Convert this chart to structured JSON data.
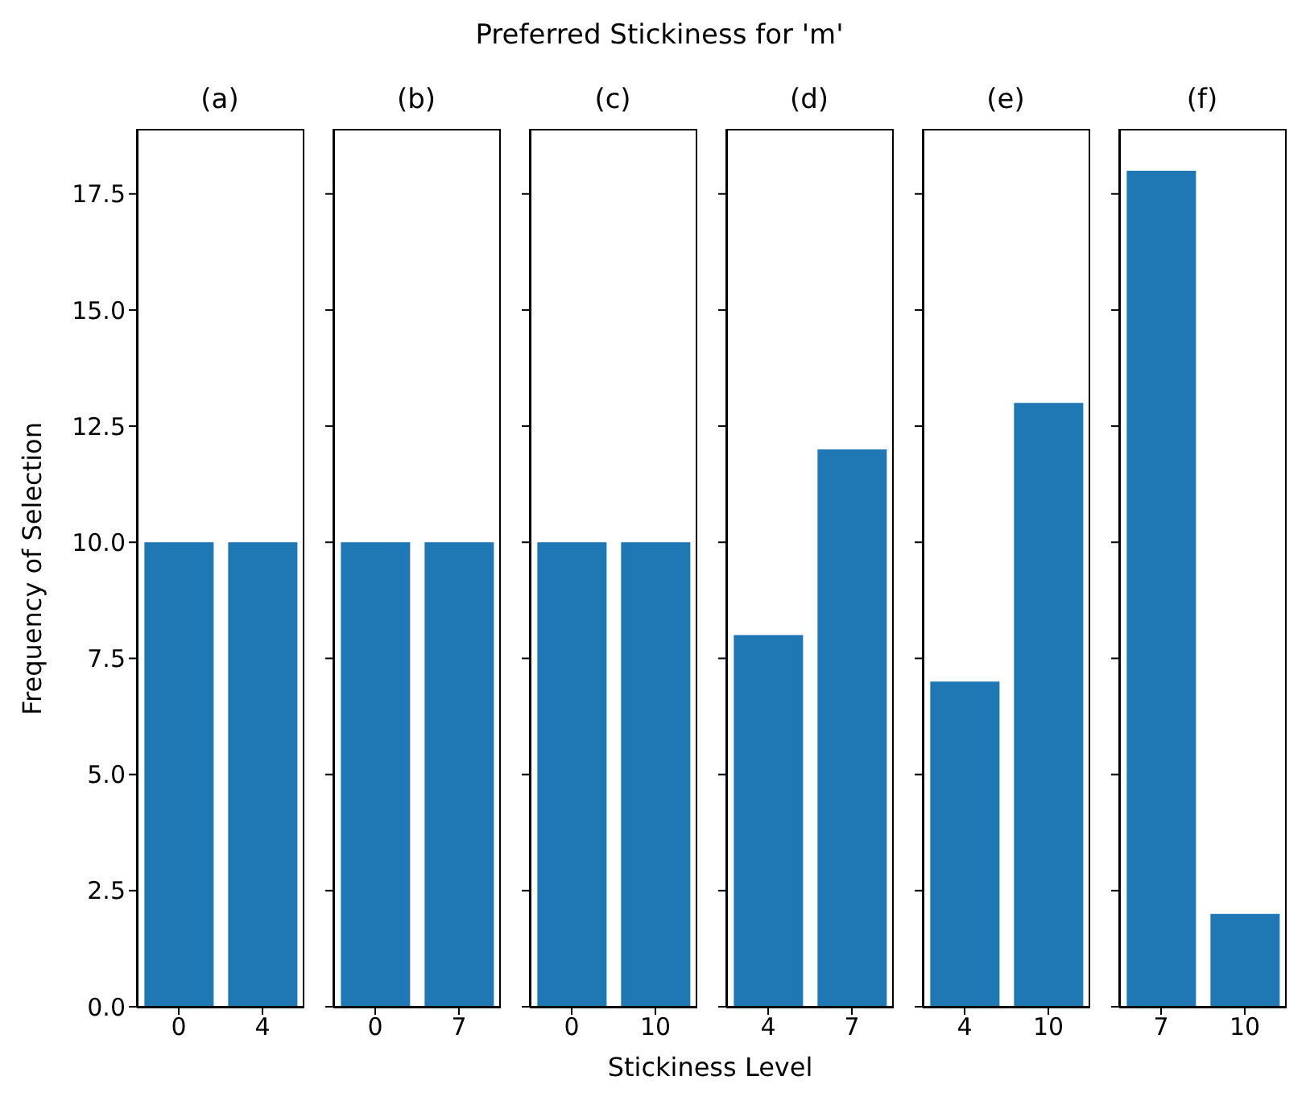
{
  "chart_data": [
    {
      "type": "bar",
      "title": "(a)",
      "annotations": [
        "Preferred Stickiness for 'm'"
      ],
      "ylabel": "Frequency of Selection",
      "categories": [
        "0",
        "4"
      ],
      "values": [
        10,
        10
      ],
      "color": "#1f77b4",
      "ylim": [
        0,
        18.9
      ],
      "yticks": [
        {
          "value": 0,
          "label": "0.0"
        },
        2.5,
        {
          "value": 5,
          "label": "5.0"
        },
        7.5,
        {
          "value": 10,
          "label": "10.0"
        },
        12.5,
        {
          "value": 15,
          "label": "15.0"
        },
        17.5
      ],
      "legend": false,
      "grid": false
    },
    {
      "type": "bar",
      "title": "(b)",
      "categories": [
        "0",
        "7"
      ],
      "values": [
        10,
        10
      ],
      "color": "#1f77b4",
      "ylim": [
        0,
        18.9
      ],
      "yticks": [
        {
          "value": 0,
          "label": null
        },
        {
          "value": 2.5,
          "label": null
        },
        {
          "value": 5,
          "label": null
        },
        {
          "value": 7.5,
          "label": null
        },
        {
          "value": 10,
          "label": null
        },
        {
          "value": 12.5,
          "label": null
        },
        {
          "value": 15,
          "label": null
        },
        {
          "value": 17.5,
          "label": null
        }
      ],
      "tick_labels": "x",
      "legend": false,
      "grid": false
    },
    {
      "type": "bar",
      "title": "(c)",
      "xlabel": "Stickiness Level",
      "categories": [
        "0",
        "10"
      ],
      "values": [
        10,
        10
      ],
      "color": "#1f77b4",
      "ylim": [
        0,
        18.9
      ],
      "yticks": [
        {
          "value": 0,
          "label": null
        },
        {
          "value": 2.5,
          "label": null
        },
        {
          "value": 5,
          "label": null
        },
        {
          "value": 7.5,
          "label": null
        },
        {
          "value": 10,
          "label": null
        },
        {
          "value": 12.5,
          "label": null
        },
        {
          "value": 15,
          "label": null
        },
        {
          "value": 17.5,
          "label": null
        }
      ],
      "tick_labels": "x",
      "legend": false,
      "grid": false
    },
    {
      "type": "bar",
      "title": "(d)",
      "categories": [
        "4",
        "7"
      ],
      "values": [
        8,
        12
      ],
      "color": "#1f77b4",
      "ylim": [
        0,
        18.9
      ],
      "yticks": [
        {
          "value": 0,
          "label": null
        },
        {
          "value": 2.5,
          "label": null
        },
        {
          "value": 5,
          "label": null
        },
        {
          "value": 7.5,
          "label": null
        },
        {
          "value": 10,
          "label": null
        },
        {
          "value": 12.5,
          "label": null
        },
        {
          "value": 15,
          "label": null
        },
        {
          "value": 17.5,
          "label": null
        }
      ],
      "tick_labels": "x",
      "legend": false,
      "grid": false
    },
    {
      "type": "bar",
      "title": "(e)",
      "categories": [
        "4",
        "10"
      ],
      "values": [
        7,
        13
      ],
      "color": "#1f77b4",
      "ylim": [
        0,
        18.9
      ],
      "yticks": [
        {
          "value": 0,
          "label": null
        },
        {
          "value": 2.5,
          "label": null
        },
        {
          "value": 5,
          "label": null
        },
        {
          "value": 7.5,
          "label": null
        },
        {
          "value": 10,
          "label": null
        },
        {
          "value": 12.5,
          "label": null
        },
        {
          "value": 15,
          "label": null
        },
        {
          "value": 17.5,
          "label": null
        }
      ],
      "tick_labels": "x",
      "legend": false,
      "grid": false
    },
    {
      "type": "bar",
      "title": "(f)",
      "categories": [
        "7",
        "10"
      ],
      "values": [
        18,
        2
      ],
      "color": "#1f77b4",
      "ylim": [
        0,
        18.9
      ],
      "yticks": [
        {
          "value": 0,
          "label": null
        },
        {
          "value": 2.5,
          "label": null
        },
        {
          "value": 5,
          "label": null
        },
        {
          "value": 7.5,
          "label": null
        },
        {
          "value": 10,
          "label": null
        },
        {
          "value": 12.5,
          "label": null
        },
        {
          "value": 15,
          "label": null
        },
        {
          "value": 17.5,
          "label": null
        }
      ],
      "tick_labels": "x",
      "legend": false,
      "grid": false
    }
  ]
}
